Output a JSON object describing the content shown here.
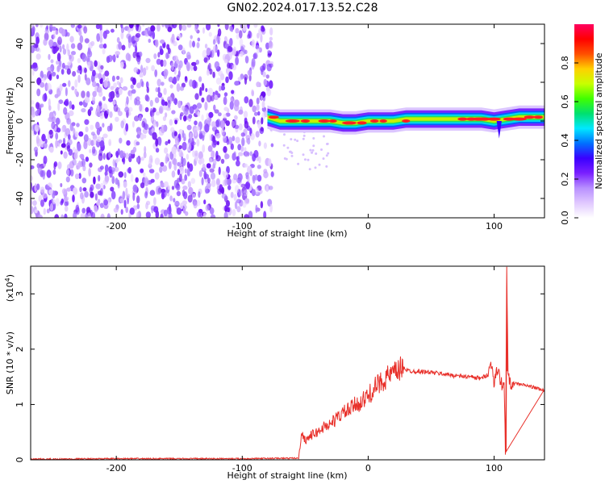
{
  "title": "GN02.2024.017.13.52.C28",
  "colors": {
    "trace": "#e8302a",
    "frame": "#000000"
  },
  "chart_data": [
    {
      "type": "heatmap",
      "xlabel": "Height of straight line (km)",
      "ylabel": "Frequency (Hz)",
      "xlim": [
        -268,
        140
      ],
      "ylim": [
        -50,
        50
      ],
      "xticks": [
        -200,
        -100,
        0,
        100
      ],
      "xtick_labels": [
        "-200",
        "-100",
        "0",
        "100"
      ],
      "yticks": [
        -40,
        -20,
        0,
        20,
        40
      ],
      "ytick_labels": [
        "-40",
        "-20",
        "0",
        "20",
        "40"
      ],
      "noise_region_x": [
        -268,
        -76
      ],
      "signal_region_x": [
        -80,
        140
      ],
      "signal_center_freq": [
        [
          -80,
          2
        ],
        [
          -70,
          0
        ],
        [
          -60,
          0
        ],
        [
          -50,
          0
        ],
        [
          -40,
          0
        ],
        [
          -30,
          0
        ],
        [
          -20,
          -1
        ],
        [
          -10,
          -1
        ],
        [
          0,
          0
        ],
        [
          10,
          0
        ],
        [
          20,
          0
        ],
        [
          30,
          1
        ],
        [
          40,
          1
        ],
        [
          50,
          1
        ],
        [
          60,
          1
        ],
        [
          70,
          1
        ],
        [
          80,
          1
        ],
        [
          90,
          1
        ],
        [
          100,
          0
        ],
        [
          110,
          1
        ],
        [
          120,
          2
        ],
        [
          140,
          2
        ]
      ],
      "colorbar": {
        "label": "Normalized spectral amplitude",
        "range": [
          0,
          1
        ],
        "ticks": [
          0.0,
          0.2,
          0.4,
          0.6,
          0.8
        ],
        "tick_labels": [
          "0.0",
          "0.2",
          "0.4",
          "0.6",
          "0.8"
        ],
        "stops": [
          "#ffffff",
          "#e0c8ff",
          "#b890ff",
          "#7a20ff",
          "#3a00ff",
          "#0070ff",
          "#00e8ff",
          "#00e070",
          "#40ff00",
          "#c8ff00",
          "#ffd000",
          "#ff5000",
          "#ff0000",
          "#ff0060"
        ]
      }
    },
    {
      "type": "line",
      "xlabel": "Height of straight line (km)",
      "ylabel": "SNR (10 * v/v)",
      "scale_note": "(x10",
      "scale_exp": "4",
      "scale_close": ")",
      "xlim": [
        -268,
        140
      ],
      "ylim": [
        0,
        3.5
      ],
      "xticks": [
        -200,
        -100,
        0,
        100
      ],
      "xtick_labels": [
        "-200",
        "-100",
        "0",
        "100"
      ],
      "yticks": [
        0,
        1,
        2,
        3
      ],
      "ytick_labels": [
        "0",
        "1",
        "2",
        "3"
      ],
      "series": [
        {
          "x": [
            -268,
            -200,
            -100,
            -55,
            -53,
            -50,
            -45,
            -40,
            -35,
            -30,
            -25,
            -20,
            -15,
            -10,
            -5,
            0,
            5,
            10,
            15,
            20,
            25,
            28,
            30,
            35,
            40,
            50,
            60,
            70,
            80,
            90,
            95,
            98,
            100,
            103,
            105,
            108,
            109,
            110,
            111,
            112,
            115,
            120,
            130,
            140
          ],
          "y": [
            0.01,
            0.02,
            0.02,
            0.03,
            0.5,
            0.35,
            0.45,
            0.5,
            0.6,
            0.65,
            0.75,
            0.85,
            0.9,
            1.0,
            1.05,
            1.15,
            1.3,
            1.4,
            1.5,
            1.55,
            1.62,
            1.7,
            1.62,
            1.6,
            1.6,
            1.58,
            1.55,
            1.52,
            1.5,
            1.47,
            1.55,
            1.75,
            1.4,
            1.65,
            1.42,
            1.3,
            0.15,
            3.45,
            1.6,
            1.4,
            1.38,
            1.37,
            1.32,
            1.25
          ]
        }
      ]
    }
  ]
}
